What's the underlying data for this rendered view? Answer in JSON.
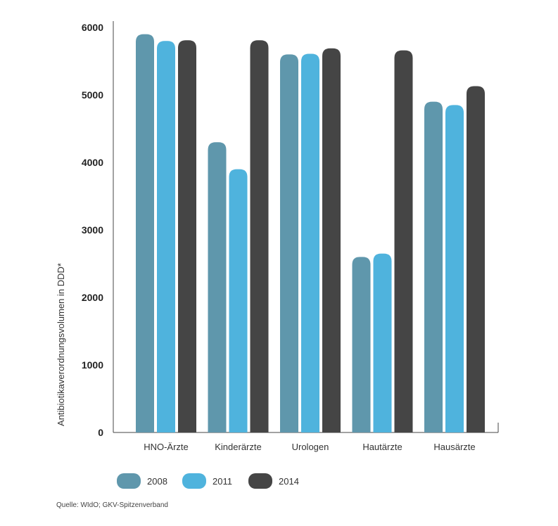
{
  "chart_data": {
    "type": "bar",
    "ylabel": "Antibiotikaverordnungsvolumen in DDD*",
    "xlabel": "",
    "ylim": [
      0,
      6000
    ],
    "yticks": [
      0,
      1000,
      2000,
      3000,
      4000,
      5000,
      6000
    ],
    "categories": [
      "HNO-Ärzte",
      "Kinderärzte",
      "Urologen",
      "Hautärzte",
      "Hausärzte"
    ],
    "series": [
      {
        "name": "2008",
        "color": "#5f97ac",
        "values": [
          5900,
          4300,
          5600,
          2600,
          4900
        ]
      },
      {
        "name": "2011",
        "color": "#4fb3dd",
        "values": [
          5800,
          3900,
          5610,
          2650,
          4850
        ]
      },
      {
        "name": "2014",
        "color": "#454545",
        "values": [
          5810,
          5810,
          5690,
          5660,
          5130
        ]
      }
    ],
    "grid": false,
    "legend_position": "bottom-left"
  },
  "source": "Quelle: WIdO; GKV-Spitzenverband"
}
